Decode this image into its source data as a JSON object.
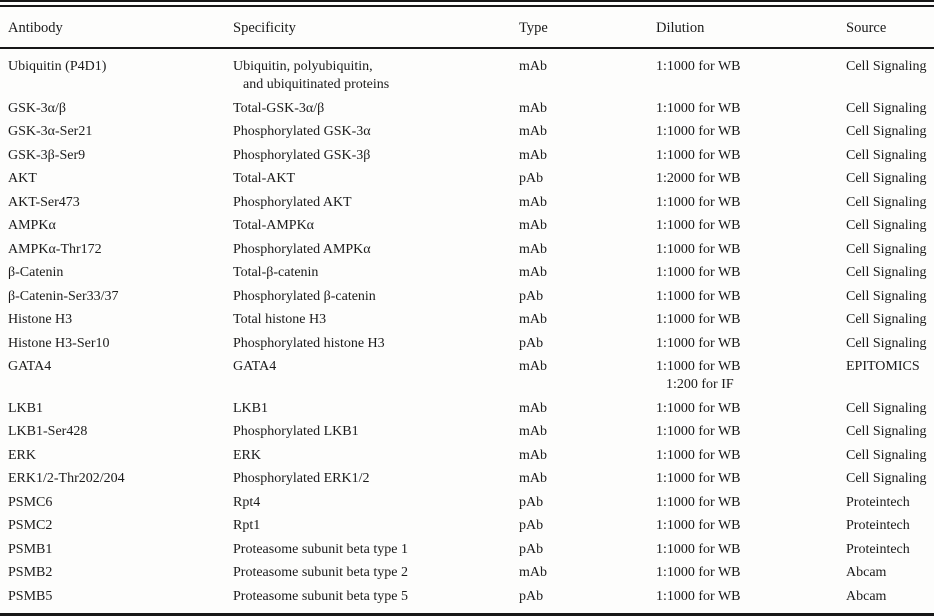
{
  "colors": {
    "background": "#fdfdfc",
    "text": "#1b1b1b",
    "rule": "#171717"
  },
  "table": {
    "columns": [
      "Antibody",
      "Specificity",
      "Type",
      "Dilution",
      "Source"
    ],
    "rows": [
      {
        "antibody": "Ubiquitin (P4D1)",
        "specificity": [
          "Ubiquitin, polyubiquitin,",
          "and ubiquitinated proteins"
        ],
        "type": "mAb",
        "dilution": "1:1000 for WB",
        "source": "Cell Signaling"
      },
      {
        "antibody": "GSK-3α/β",
        "specificity": "Total-GSK-3α/β",
        "type": "mAb",
        "dilution": "1:1000 for WB",
        "source": "Cell Signaling"
      },
      {
        "antibody": "GSK-3α-Ser21",
        "specificity": "Phosphorylated GSK-3α",
        "type": "mAb",
        "dilution": "1:1000 for WB",
        "source": "Cell Signaling"
      },
      {
        "antibody": "GSK-3β-Ser9",
        "specificity": "Phosphorylated GSK-3β",
        "type": "mAb",
        "dilution": "1:1000 for WB",
        "source": "Cell Signaling"
      },
      {
        "antibody": "AKT",
        "specificity": "Total-AKT",
        "type": "pAb",
        "dilution": "1:2000 for WB",
        "source": "Cell Signaling"
      },
      {
        "antibody": "AKT-Ser473",
        "specificity": "Phosphorylated AKT",
        "type": "mAb",
        "dilution": "1:1000 for WB",
        "source": "Cell Signaling"
      },
      {
        "antibody": "AMPKα",
        "specificity": "Total-AMPKα",
        "type": "mAb",
        "dilution": "1:1000 for WB",
        "source": "Cell Signaling"
      },
      {
        "antibody": "AMPKα-Thr172",
        "specificity": "Phosphorylated AMPKα",
        "type": "mAb",
        "dilution": "1:1000 for WB",
        "source": "Cell Signaling"
      },
      {
        "antibody": "β-Catenin",
        "specificity": "Total-β-catenin",
        "type": "mAb",
        "dilution": "1:1000 for WB",
        "source": "Cell Signaling"
      },
      {
        "antibody": "β-Catenin-Ser33/37",
        "specificity": "Phosphorylated β-catenin",
        "type": "pAb",
        "dilution": "1:1000 for WB",
        "source": "Cell Signaling"
      },
      {
        "antibody": "Histone H3",
        "specificity": "Total histone H3",
        "type": "mAb",
        "dilution": "1:1000 for WB",
        "source": "Cell Signaling"
      },
      {
        "antibody": "Histone H3-Ser10",
        "specificity": "Phosphorylated histone H3",
        "type": "pAb",
        "dilution": "1:1000 for WB",
        "source": "Cell Signaling"
      },
      {
        "antibody": "GATA4",
        "specificity": "GATA4",
        "type": "mAb",
        "dilution": [
          "1:1000 for WB",
          "1:200 for IF"
        ],
        "source": "EPITOMICS"
      },
      {
        "antibody": "LKB1",
        "specificity": "LKB1",
        "type": "mAb",
        "dilution": "1:1000 for WB",
        "source": "Cell Signaling"
      },
      {
        "antibody": "LKB1-Ser428",
        "specificity": "Phosphorylated LKB1",
        "type": "mAb",
        "dilution": "1:1000 for WB",
        "source": "Cell Signaling"
      },
      {
        "antibody": "ERK",
        "specificity": "ERK",
        "type": "mAb",
        "dilution": "1:1000 for WB",
        "source": "Cell Signaling"
      },
      {
        "antibody": "ERK1/2-Thr202/204",
        "specificity": "Phosphorylated ERK1/2",
        "type": "mAb",
        "dilution": "1:1000 for WB",
        "source": "Cell Signaling"
      },
      {
        "antibody": "PSMC6",
        "specificity": "Rpt4",
        "type": "pAb",
        "dilution": "1:1000 for WB",
        "source": "Proteintech"
      },
      {
        "antibody": "PSMC2",
        "specificity": "Rpt1",
        "type": "pAb",
        "dilution": "1:1000 for WB",
        "source": "Proteintech"
      },
      {
        "antibody": "PSMB1",
        "specificity": "Proteasome subunit beta type 1",
        "type": "pAb",
        "dilution": "1:1000 for WB",
        "source": "Proteintech"
      },
      {
        "antibody": "PSMB2",
        "specificity": "Proteasome subunit beta type 2",
        "type": "mAb",
        "dilution": "1:1000 for WB",
        "source": "Abcam"
      },
      {
        "antibody": "PSMB5",
        "specificity": "Proteasome subunit beta type 5",
        "type": "pAb",
        "dilution": "1:1000 for WB",
        "source": "Abcam"
      }
    ]
  }
}
